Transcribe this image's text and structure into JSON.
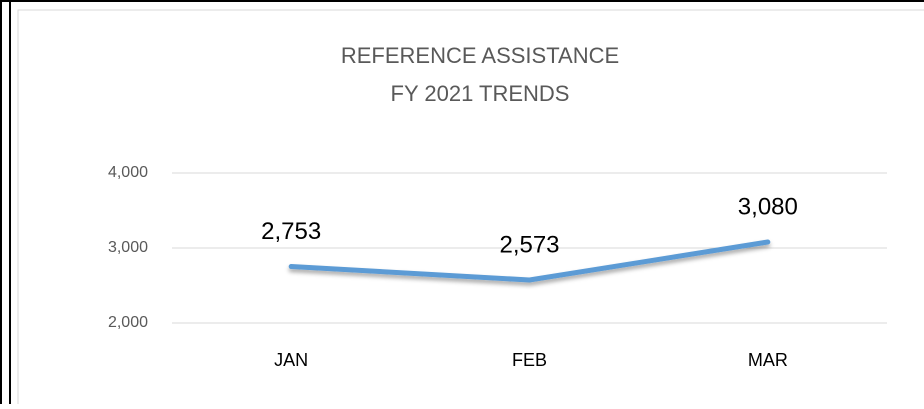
{
  "chart_data": {
    "type": "line",
    "title": "REFERENCE ASSISTANCE",
    "subtitle": "FY 2021 TRENDS",
    "categories": [
      "JAN",
      "FEB",
      "MAR"
    ],
    "series": [
      {
        "name": "Reference Assistance",
        "color": "#5b9bd5",
        "values": [
          2753,
          2573,
          3080
        ],
        "value_labels": [
          "2,753",
          "2,573",
          "3,080"
        ]
      }
    ],
    "ylim": [
      2000,
      4000
    ],
    "yticks": [
      {
        "value": 2000,
        "label": "2,000"
      },
      {
        "value": 3000,
        "label": "3,000"
      },
      {
        "value": 4000,
        "label": "4,000"
      }
    ],
    "grid": true
  }
}
